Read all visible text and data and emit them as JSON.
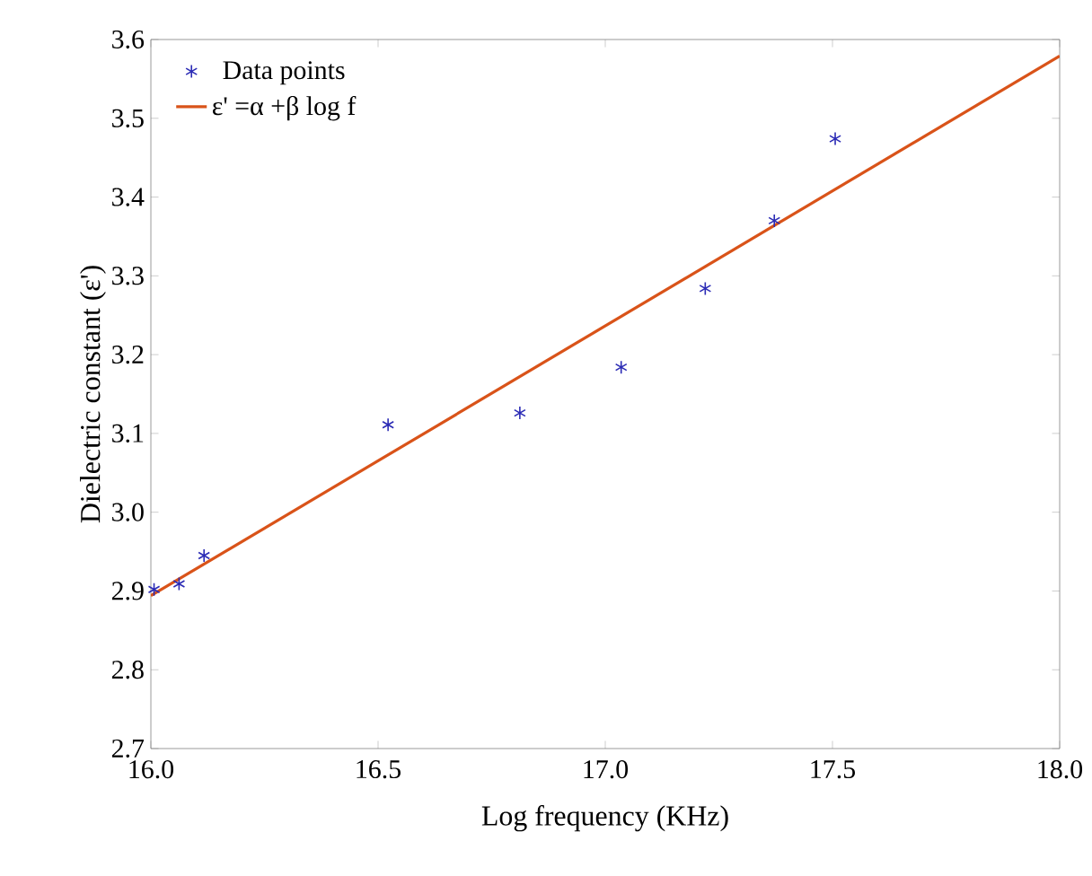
{
  "chart_data": {
    "type": "scatter",
    "xlabel": "Log frequency (KHz)",
    "ylabel": "Dielectric constant (ε')",
    "xlim": [
      16.0,
      18.0
    ],
    "ylim": [
      2.7,
      3.6
    ],
    "xticks": [
      {
        "value": 16,
        "label": "16.0"
      },
      16.5,
      {
        "value": 17,
        "label": "17.0"
      },
      17.5,
      {
        "value": 18,
        "label": "18.0"
      }
    ],
    "yticks": [
      2.7,
      2.8,
      2.9,
      {
        "value": 3,
        "label": "3.0"
      },
      3.1,
      3.2,
      3.3,
      3.4,
      3.5,
      3.6
    ],
    "grid": false,
    "legend": "top left",
    "series": [
      {
        "name": "Data points",
        "marker": "cross",
        "color": "#2b2bb5",
        "x": [
          16.007,
          16.062,
          16.117,
          16.522,
          16.812,
          17.035,
          17.22,
          17.372,
          17.506
        ],
        "values": [
          2.902,
          2.909,
          2.945,
          3.111,
          3.126,
          3.184,
          3.284,
          3.37,
          3.474
        ]
      },
      {
        "name": "ε' =α +β log f",
        "type": "line",
        "marker": "none",
        "line_style": "solid",
        "color": "#d95319",
        "x": [
          16.0,
          18.0
        ],
        "values": [
          2.894,
          3.579
        ]
      }
    ]
  }
}
